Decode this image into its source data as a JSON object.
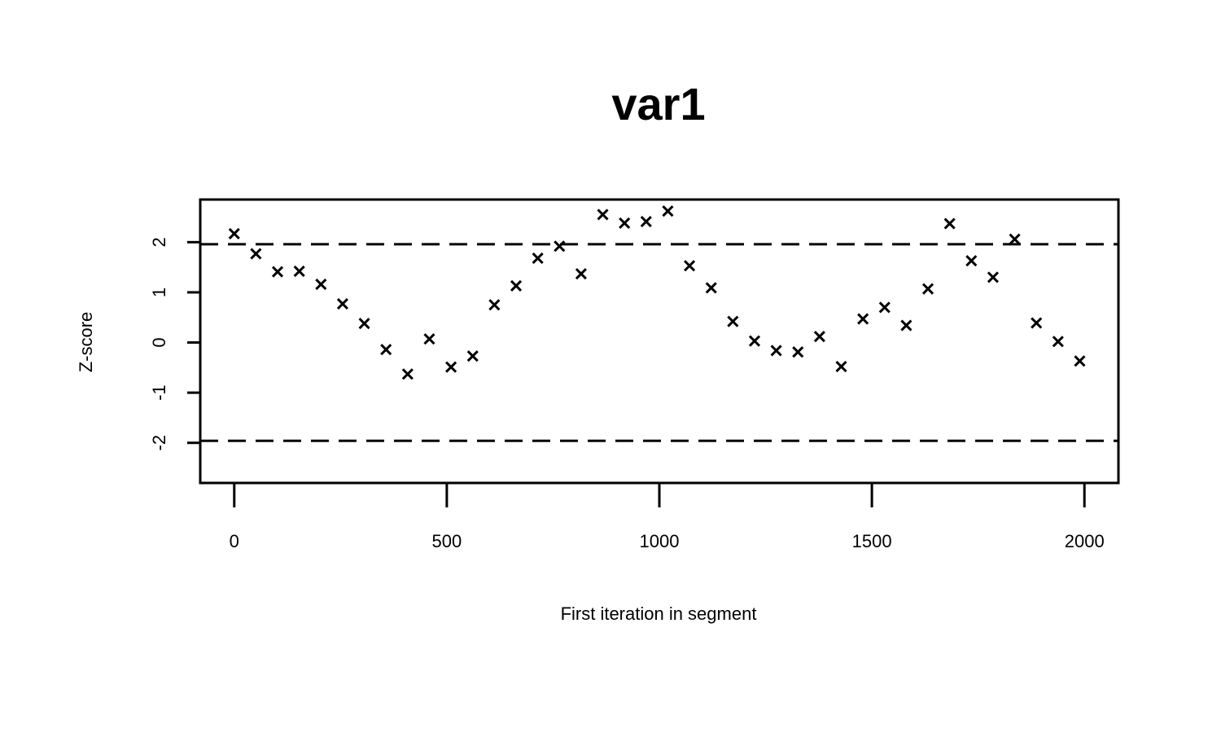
{
  "chart_data": {
    "type": "scatter",
    "title": "var1",
    "xlabel": "First iteration in segment",
    "ylabel": "Z-score",
    "xlim": [
      -80,
      2080
    ],
    "ylim": [
      -2.8,
      2.85
    ],
    "x_ticks": [
      0,
      500,
      1000,
      1500,
      2000
    ],
    "x_tick_labels": [
      "0",
      "500",
      "1000",
      "1500",
      "2000"
    ],
    "y_ticks": [
      -2,
      -1,
      0,
      1,
      2
    ],
    "y_tick_labels": [
      "-2",
      "-1",
      "0",
      "1",
      "2"
    ],
    "reference_lines": [
      1.96,
      -1.96
    ],
    "marker": "x",
    "grid": false,
    "x": [
      0,
      51,
      102,
      153,
      204,
      255,
      306,
      357,
      408,
      459,
      510,
      561,
      612,
      663,
      714,
      765,
      816,
      867,
      918,
      969,
      1020,
      1071,
      1122,
      1173,
      1224,
      1275,
      1326,
      1377,
      1428,
      1479,
      1530,
      1581,
      1632,
      1683,
      1734,
      1785,
      1836,
      1887,
      1938,
      1989
    ],
    "y": [
      2.17,
      1.77,
      1.41,
      1.42,
      1.16,
      0.77,
      0.38,
      -0.14,
      -0.63,
      0.07,
      -0.49,
      -0.27,
      0.75,
      1.13,
      1.68,
      1.92,
      1.37,
      2.55,
      2.38,
      2.41,
      2.62,
      1.53,
      1.09,
      0.42,
      0.03,
      -0.16,
      -0.19,
      0.12,
      -0.48,
      0.47,
      0.7,
      0.34,
      1.07,
      2.37,
      1.63,
      1.3,
      2.06,
      0.39,
      0.02,
      -0.37
    ]
  }
}
